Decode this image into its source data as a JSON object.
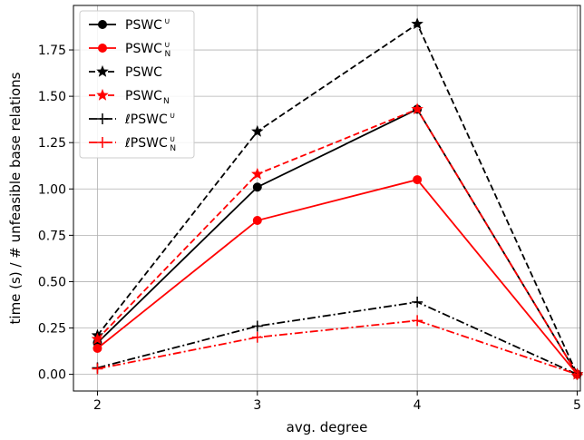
{
  "chart_data": {
    "type": "line",
    "xlabel": "avg. degree",
    "ylabel": "time (s) / # unfeasible base relations",
    "xlim": [
      1.85,
      5.02
    ],
    "ylim": [
      -0.09,
      1.99
    ],
    "x_ticks": [
      2,
      3,
      4,
      5
    ],
    "x_tick_labels": [
      "2",
      "3",
      "4",
      "5"
    ],
    "y_ticks": [
      0.0,
      0.25,
      0.5,
      0.75,
      1.0,
      1.25,
      1.5,
      1.75
    ],
    "y_tick_labels": [
      "0.00",
      "0.25",
      "0.50",
      "0.75",
      "1.00",
      "1.25",
      "1.50",
      "1.75"
    ],
    "grid": true,
    "legend_position": "top-left",
    "x": [
      2,
      3,
      4,
      5
    ],
    "series": [
      {
        "name": "PSWC",
        "sup": "∪",
        "sub": "",
        "color": "#000000",
        "dash": "solid",
        "marker": "circle",
        "values": [
          0.17,
          1.01,
          1.43,
          0.0
        ]
      },
      {
        "name": "PSWC",
        "sup": "∪",
        "sub": "N",
        "color": "#ff0000",
        "dash": "solid",
        "marker": "circle",
        "values": [
          0.14,
          0.83,
          1.05,
          0.0
        ]
      },
      {
        "name": "PSWC",
        "sup": "",
        "sub": "",
        "color": "#000000",
        "dash": "dashed",
        "marker": "star",
        "values": [
          0.21,
          1.31,
          1.89,
          0.0
        ]
      },
      {
        "name": "PSWC",
        "sup": "",
        "sub": "N",
        "color": "#ff0000",
        "dash": "dashed",
        "marker": "star",
        "values": [
          0.19,
          1.08,
          1.43,
          0.0
        ]
      },
      {
        "name": "ℓPSWC",
        "sup": "∪",
        "sub": "",
        "color": "#000000",
        "dash": "dashdot",
        "marker": "plus",
        "values": [
          0.035,
          0.26,
          0.39,
          0.0
        ]
      },
      {
        "name": "ℓPSWC",
        "sup": "∪",
        "sub": "N",
        "color": "#ff0000",
        "dash": "dashdot",
        "marker": "plus",
        "values": [
          0.03,
          0.2,
          0.29,
          0.0
        ]
      }
    ]
  }
}
